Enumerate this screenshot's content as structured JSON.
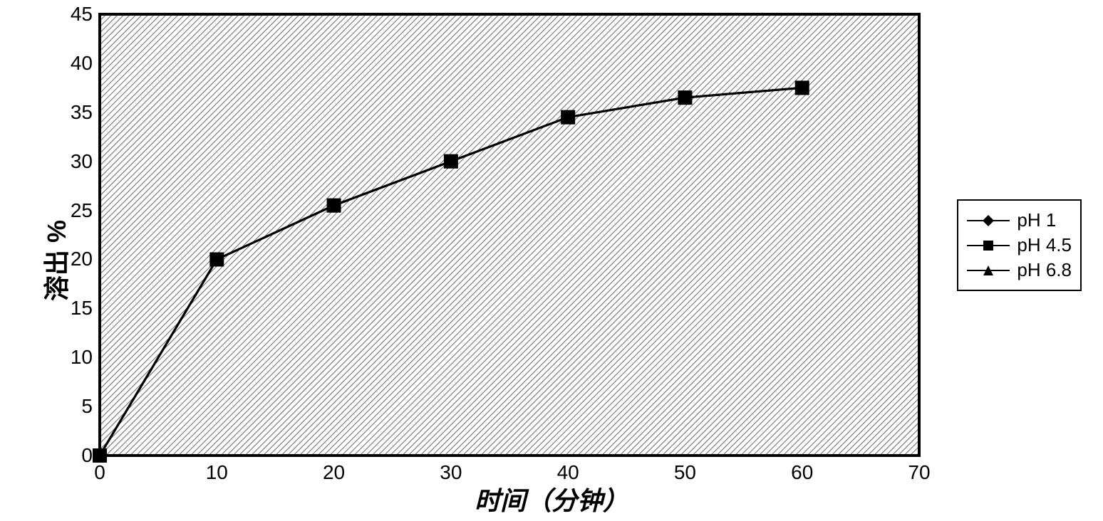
{
  "chart": {
    "type": "line",
    "ylabel": "溶出 %",
    "xlabel": "时间（分钟）",
    "label_fontsize": 36,
    "tick_fontsize": 28,
    "xlim": [
      0,
      70
    ],
    "ylim": [
      0,
      45
    ],
    "xticks": [
      0,
      10,
      20,
      30,
      40,
      50,
      60,
      70
    ],
    "yticks": [
      0,
      5,
      10,
      15,
      20,
      25,
      30,
      35,
      40,
      45
    ],
    "background_color": "#ffffff",
    "axis_color": "#000000",
    "line_color": "#000000",
    "line_width": 3,
    "marker_size": 10,
    "plot_fill_pattern": "diagonal-hatch",
    "plot_fill_color": "#808080",
    "plot_border_width": 4,
    "series": [
      {
        "name": "pH 1",
        "marker": "diamond",
        "x": [
          0,
          10,
          20,
          30,
          40,
          50,
          60
        ],
        "y": [
          0,
          20,
          25.5,
          30,
          34.5,
          36.5,
          37.5
        ]
      },
      {
        "name": "pH 4.5",
        "marker": "square",
        "x": [
          0,
          10,
          20,
          30,
          40,
          50,
          60
        ],
        "y": [
          0,
          20,
          25.5,
          30,
          34.5,
          36.5,
          37.5
        ]
      },
      {
        "name": "pH 6.8",
        "marker": "triangle",
        "x": [
          0,
          10,
          20,
          30,
          40,
          50,
          60
        ],
        "y": [
          0,
          20,
          25.5,
          30,
          34.5,
          36.5,
          37.5
        ]
      }
    ],
    "legend_border": "#000000",
    "legend_bg": "#ffffff"
  }
}
